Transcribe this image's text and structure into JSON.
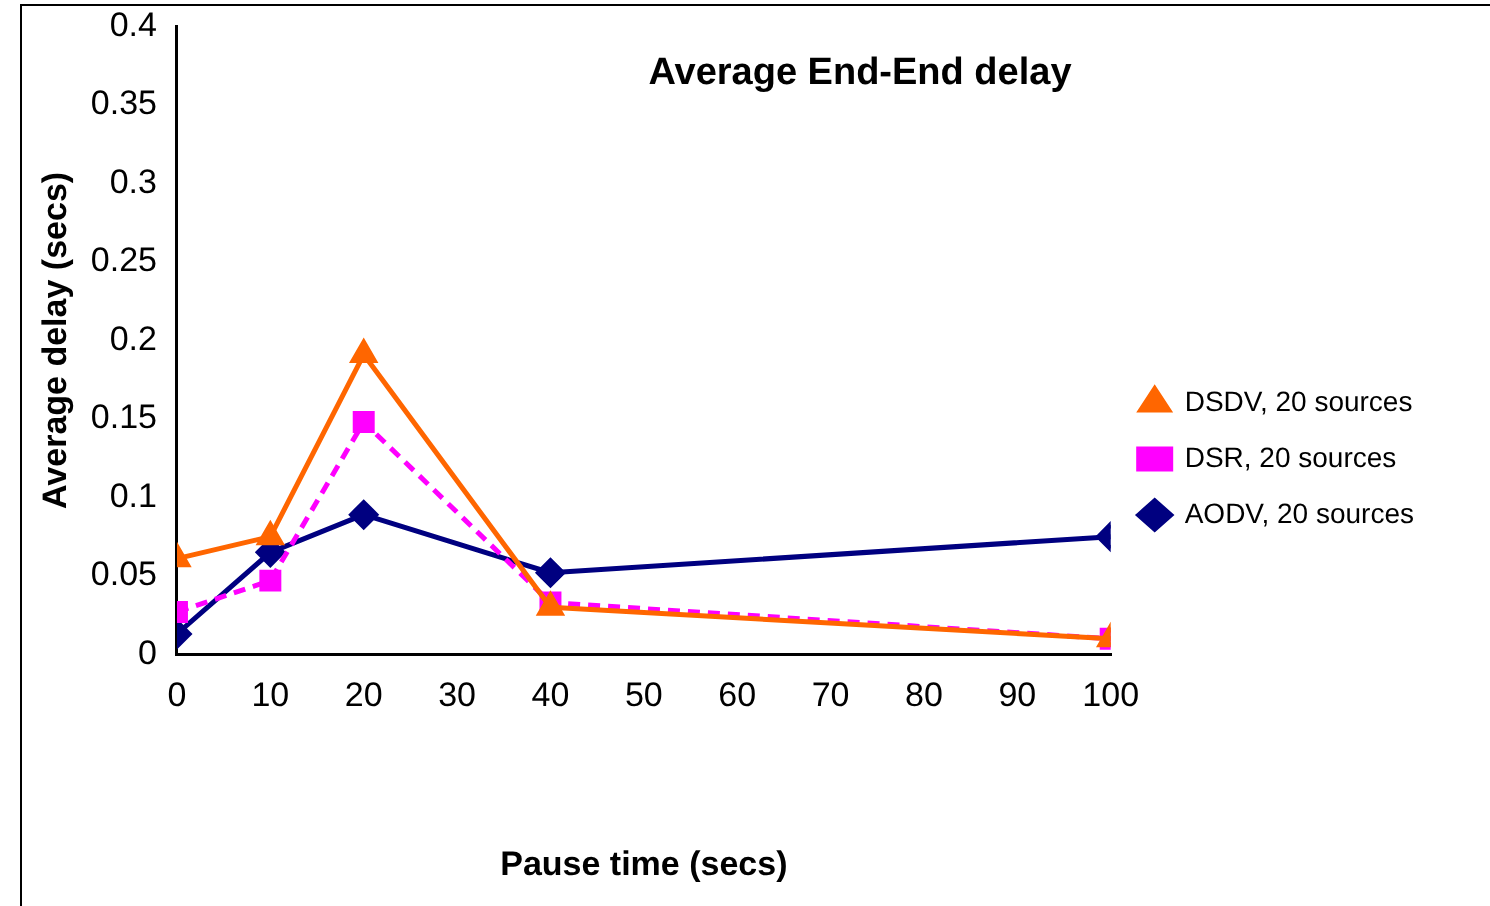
{
  "chart_data": {
    "type": "line",
    "title": "Average End-End delay",
    "xlabel": "Pause time (secs)",
    "ylabel": "Average delay (secs)",
    "x": [
      0,
      10,
      20,
      40,
      100
    ],
    "series": [
      {
        "name": "AODV, 20 sources",
        "color": "#000080",
        "values": [
          0.013,
          0.065,
          0.089,
          0.052,
          0.075
        ],
        "marker": "diamond",
        "line_style": "solid"
      },
      {
        "name": "DSR, 20 sources",
        "color": "#ff00ff",
        "values": [
          0.027,
          0.047,
          0.148,
          0.033,
          0.01
        ],
        "marker": "square",
        "line_style": "dashed"
      },
      {
        "name": "DSDV, 20 sources",
        "color": "#ff6600",
        "values": [
          0.061,
          0.075,
          0.191,
          0.03,
          0.01
        ],
        "marker": "triangle",
        "line_style": "solid"
      }
    ],
    "xlim": [
      0,
      100
    ],
    "xticks": [
      0,
      10,
      20,
      30,
      40,
      50,
      60,
      70,
      80,
      90,
      100
    ],
    "ylim": [
      0,
      0.4
    ],
    "yticks": [
      0,
      0.05,
      0.1,
      0.15,
      0.2,
      0.25,
      0.3,
      0.35,
      0.4
    ],
    "grid": false,
    "legend": "right"
  }
}
